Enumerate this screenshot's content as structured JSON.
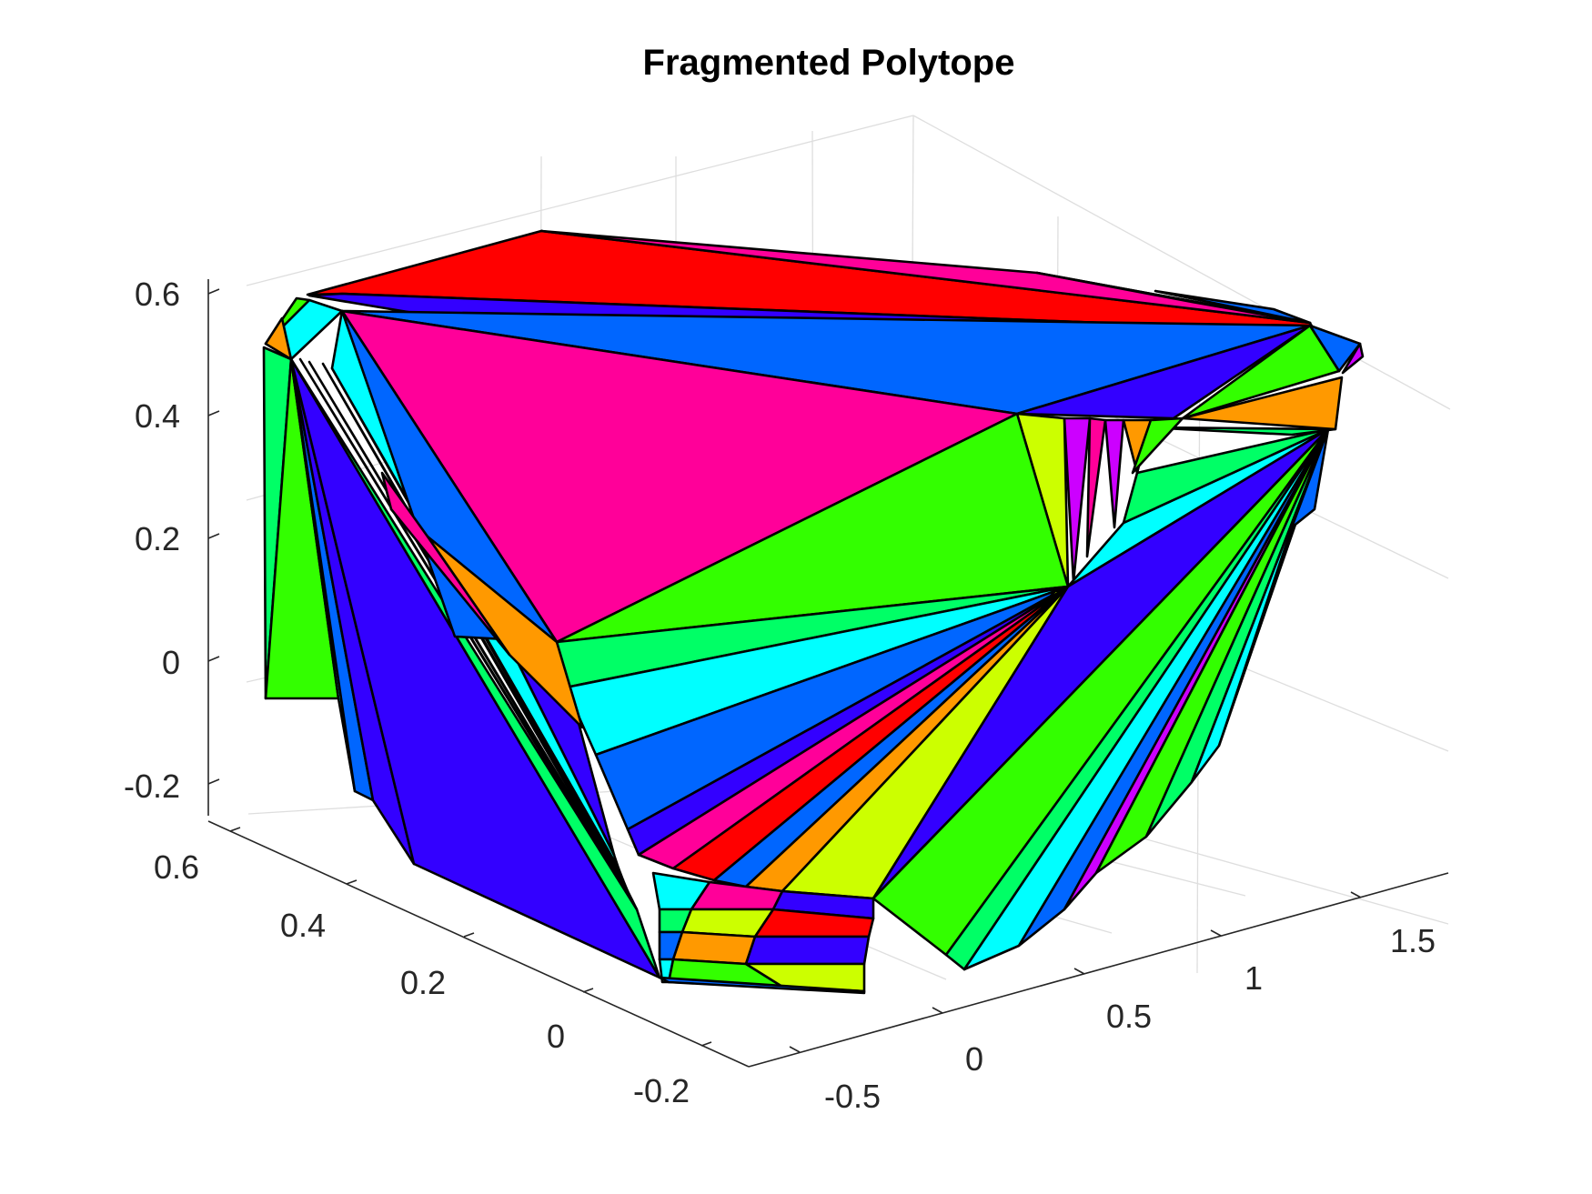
{
  "chart_data": {
    "type": "3d-patch",
    "title": "Fragmented Polytope",
    "xlabel": "",
    "ylabel": "",
    "zlabel": "",
    "grid": true,
    "xlim": [
      -0.5,
      1.75
    ],
    "ylim": [
      -0.2,
      0.6
    ],
    "zlim": [
      -0.25,
      0.6
    ],
    "x_ticks": [
      "-0.5",
      "0",
      "0.5",
      "1",
      "1.5"
    ],
    "y_ticks": [
      "-0.2",
      "0",
      "0.2",
      "0.4",
      "0.6"
    ],
    "z_ticks": [
      "-0.2",
      "0",
      "0.2",
      "0.4",
      "0.6"
    ],
    "face_colors": [
      "#ff0000",
      "#ff0099",
      "#0066ff",
      "#3300ff",
      "#33ff00",
      "#00ffff",
      "#00ff66",
      "#ff9900",
      "#ccff00",
      "#cc00ff"
    ]
  }
}
